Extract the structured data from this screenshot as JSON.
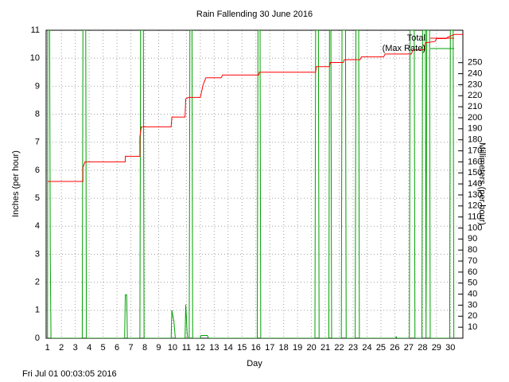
{
  "chart_data": {
    "type": "line",
    "title": "Rain Fallending 30 June 2016",
    "x_label": "Day",
    "y_label": "Inches (per hour)",
    "y2_label": "Millimeters (per hour)",
    "footer": "Fri Jul 01 00:03:05 2016",
    "xlim": [
      0.9,
      30.9
    ],
    "xticks": [
      1,
      2,
      3,
      4,
      5,
      6,
      7,
      8,
      9,
      10,
      11,
      12,
      13,
      14,
      15,
      16,
      17,
      18,
      19,
      20,
      21,
      22,
      23,
      24,
      25,
      26,
      27,
      28,
      29,
      30
    ],
    "ylim": [
      0,
      11
    ],
    "yticks": [
      0,
      1,
      2,
      3,
      4,
      5,
      6,
      7,
      8,
      9,
      10,
      11
    ],
    "y2lim": [
      0,
      279.4
    ],
    "y2ticks": [
      10,
      20,
      30,
      40,
      50,
      60,
      70,
      80,
      90,
      100,
      110,
      120,
      130,
      140,
      150,
      160,
      170,
      180,
      190,
      200,
      210,
      220,
      230,
      240,
      250
    ],
    "grid": true,
    "legend": "top-right",
    "series": [
      {
        "name": "Total",
        "color": "#ff0000",
        "x": [
          1,
          3.55,
          3.55,
          3.7,
          6.6,
          6.6,
          7.65,
          7.65,
          7.75,
          9.9,
          9.95,
          10.9,
          10.95,
          11.15,
          12.0,
          12.2,
          12.4,
          13.5,
          13.6,
          16.2,
          16.25,
          20.3,
          20.35,
          21.3,
          21.35,
          22.3,
          22.35,
          23.5,
          23.6,
          25.2,
          25.3,
          27.2,
          27.3,
          28.1,
          28.2,
          28.9,
          29.0,
          29.7,
          29.8,
          30.3,
          30.9
        ],
        "values": [
          5.6,
          5.6,
          6.1,
          6.3,
          6.3,
          6.5,
          6.5,
          7.2,
          7.55,
          7.55,
          7.9,
          7.9,
          8.55,
          8.6,
          8.6,
          9.05,
          9.3,
          9.3,
          9.4,
          9.4,
          9.5,
          9.5,
          9.7,
          9.7,
          9.85,
          9.85,
          9.95,
          9.95,
          10.05,
          10.05,
          10.15,
          10.15,
          10.3,
          10.3,
          10.55,
          10.6,
          10.7,
          10.7,
          10.75,
          10.85,
          10.85
        ]
      },
      {
        "name": "(Max Rate)",
        "color": "#00a000",
        "x": [
          1.0,
          1.02,
          1.15,
          1.2,
          1.25,
          3.5,
          3.55,
          3.75,
          3.8,
          6.55,
          6.6,
          6.7,
          6.75,
          7.65,
          7.7,
          7.9,
          7.95,
          9.9,
          9.95,
          10.1,
          10.2,
          10.9,
          10.95,
          11.05,
          11.1,
          11.2,
          11.25,
          11.4,
          11.45,
          12.0,
          12.05,
          12.5,
          12.6,
          16.1,
          16.15,
          16.3,
          16.35,
          20.25,
          20.3,
          20.5,
          20.55,
          21.25,
          21.3,
          21.4,
          21.45,
          22.15,
          22.2,
          22.45,
          22.5,
          23.15,
          23.2,
          23.4,
          23.45,
          26.05,
          26.1,
          26.15,
          27.05,
          27.1,
          27.4,
          27.45,
          27.95,
          28.0,
          28.2,
          28.25,
          28.3,
          28.5,
          28.55,
          29.95,
          30.0,
          30.2,
          30.25
        ],
        "values": [
          0,
          11,
          11,
          2.8,
          0,
          0,
          11,
          11,
          0,
          0,
          1.55,
          1.55,
          0,
          0,
          11,
          11,
          0,
          0,
          1.0,
          0.6,
          0,
          0,
          1.2,
          0.2,
          0,
          0,
          11,
          11,
          0,
          0,
          0.1,
          0.1,
          0,
          0,
          11,
          11,
          0,
          0,
          11,
          11,
          0,
          0,
          11,
          11,
          0,
          0,
          11,
          11,
          0,
          0,
          11,
          11,
          0,
          0,
          0.05,
          0,
          0,
          11,
          11,
          0,
          0,
          11,
          11,
          0,
          11,
          11,
          0,
          0,
          11,
          11,
          0
        ]
      }
    ]
  }
}
